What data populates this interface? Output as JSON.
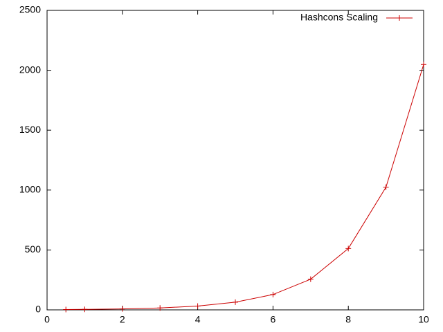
{
  "chart_data": {
    "type": "line",
    "x": [
      0.5,
      1,
      2,
      3,
      4,
      5,
      6,
      7,
      8,
      9,
      10
    ],
    "series": [
      {
        "name": "Hashcons Scaling",
        "color": "#cc0000",
        "values": [
          3,
          4,
          8,
          16,
          32,
          64,
          128,
          256,
          512,
          1024,
          2048
        ]
      }
    ],
    "xlim": [
      0,
      10
    ],
    "xticks": [
      0,
      2,
      4,
      6,
      8,
      10
    ],
    "ylim": [
      0,
      2500
    ],
    "yticks": [
      0,
      500,
      1000,
      1500,
      2000,
      2500
    ],
    "legend": "top-right",
    "grid": false
  }
}
